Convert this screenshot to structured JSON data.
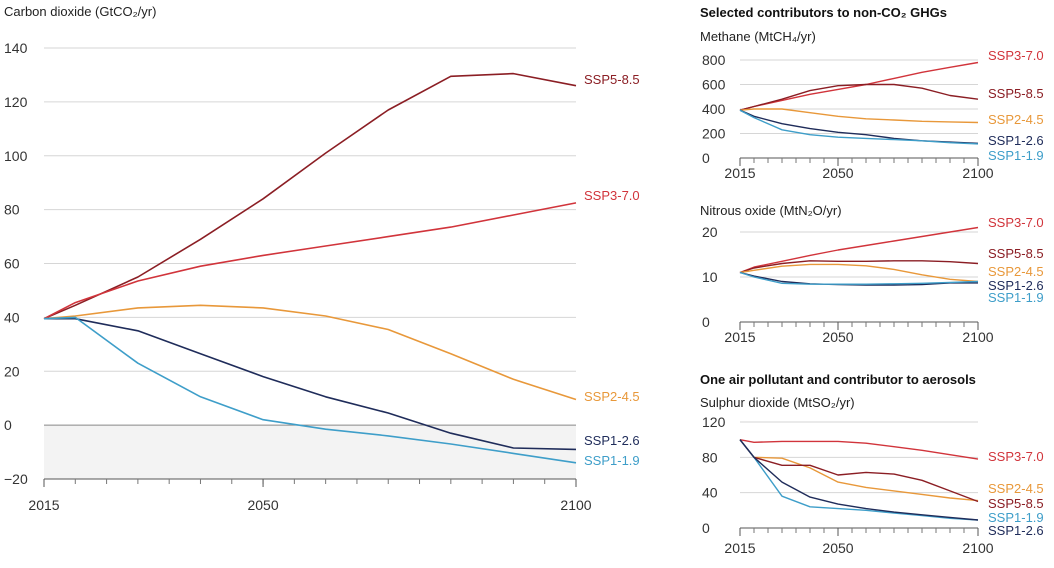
{
  "colors": {
    "SSP5-8.5": "#8b1e24",
    "SSP3-7.0": "#d1343b",
    "SSP2-4.5": "#e8983a",
    "SSP1-2.6": "#1f2c5a",
    "SSP1-1.9": "#3e9ec9"
  },
  "right_titles": {
    "ghg": "Selected contributors to non-CO₂ GHGs",
    "aerosol": "One air pollutant and contributor to aerosols"
  },
  "chart_data": [
    {
      "id": "co2",
      "type": "line",
      "title": "Carbon dioxide (GtCO₂/yr)",
      "xlim": [
        2015,
        2100
      ],
      "ylim": [
        -20,
        140
      ],
      "yticks": [
        -20,
        0,
        20,
        40,
        60,
        80,
        100,
        120,
        140
      ],
      "xticks": [
        2015,
        2050,
        2100
      ],
      "ytick_labels": [
        "−20",
        "0",
        "20",
        "40",
        "60",
        "80",
        "100",
        "120",
        "140"
      ],
      "xtick_labels": [
        "2015",
        "2050",
        "2100"
      ],
      "grid": true,
      "x": [
        2015,
        2020,
        2030,
        2040,
        2050,
        2060,
        2070,
        2080,
        2090,
        2100
      ],
      "series": [
        {
          "name": "SSP5-8.5",
          "values": [
            39.5,
            44.5,
            55,
            69,
            84,
            101,
            117,
            129.5,
            130.5,
            126
          ]
        },
        {
          "name": "SSP3-7.0",
          "values": [
            39.5,
            45.5,
            53.5,
            59,
            63,
            66.5,
            70,
            73.5,
            78,
            82.5
          ]
        },
        {
          "name": "SSP2-4.5",
          "values": [
            39.5,
            40.5,
            43.5,
            44.5,
            43.5,
            40.5,
            35.5,
            26.5,
            17,
            9.5
          ]
        },
        {
          "name": "SSP1-2.6",
          "values": [
            39.5,
            39.5,
            35,
            26.5,
            18,
            10.5,
            4.5,
            -3,
            -8.5,
            -9
          ]
        },
        {
          "name": "SSP1-1.9",
          "values": [
            39.5,
            40,
            23,
            10.5,
            2,
            -1.5,
            -4,
            -7,
            -10.5,
            -14
          ]
        }
      ]
    },
    {
      "id": "methane",
      "type": "line",
      "title": "Methane (MtCH₄/yr)",
      "xlim": [
        2015,
        2100
      ],
      "ylim": [
        0,
        800
      ],
      "yticks": [
        0,
        200,
        400,
        600,
        800
      ],
      "xticks": [
        2015,
        2050,
        2100
      ],
      "ytick_labels": [
        "0",
        "200",
        "400",
        "600",
        "800"
      ],
      "xtick_labels": [
        "2015",
        "2050",
        "2100"
      ],
      "grid": true,
      "x": [
        2015,
        2020,
        2030,
        2040,
        2050,
        2060,
        2070,
        2080,
        2090,
        2100
      ],
      "series": [
        {
          "name": "SSP3-7.0",
          "values": [
            390,
            420,
            470,
            520,
            560,
            600,
            650,
            700,
            740,
            780
          ]
        },
        {
          "name": "SSP5-8.5",
          "values": [
            390,
            420,
            480,
            550,
            590,
            600,
            600,
            570,
            510,
            480
          ]
        },
        {
          "name": "SSP2-4.5",
          "values": [
            390,
            400,
            400,
            370,
            340,
            320,
            310,
            300,
            295,
            290
          ]
        },
        {
          "name": "SSP1-2.6",
          "values": [
            390,
            340,
            280,
            240,
            210,
            190,
            160,
            140,
            130,
            120
          ]
        },
        {
          "name": "SSP1-1.9",
          "values": [
            390,
            330,
            230,
            190,
            170,
            160,
            150,
            140,
            125,
            115
          ]
        }
      ]
    },
    {
      "id": "n2o",
      "type": "line",
      "title": "Nitrous oxide (MtN₂O/yr)",
      "xlim": [
        2015,
        2100
      ],
      "ylim": [
        0,
        20
      ],
      "yticks": [
        0,
        10,
        20
      ],
      "xticks": [
        2015,
        2050,
        2100
      ],
      "ytick_labels": [
        "0",
        "10",
        "20"
      ],
      "xtick_labels": [
        "2015",
        "2050",
        "2100"
      ],
      "grid": true,
      "x": [
        2015,
        2020,
        2030,
        2040,
        2050,
        2060,
        2070,
        2080,
        2090,
        2100
      ],
      "series": [
        {
          "name": "SSP3-7.0",
          "values": [
            11,
            12.2,
            13.5,
            14.8,
            16,
            17,
            18,
            19,
            20,
            21
          ]
        },
        {
          "name": "SSP5-8.5",
          "values": [
            11,
            12,
            13,
            13.6,
            13.5,
            13.5,
            13.6,
            13.6,
            13.4,
            13
          ]
        },
        {
          "name": "SSP2-4.5",
          "values": [
            11,
            11.5,
            12.4,
            12.8,
            12.8,
            12.5,
            11.7,
            10.5,
            9.5,
            9
          ]
        },
        {
          "name": "SSP1-2.6",
          "values": [
            11,
            10.2,
            9,
            8.5,
            8.3,
            8.2,
            8.2,
            8.3,
            8.7,
            8.7
          ]
        },
        {
          "name": "SSP1-1.9",
          "values": [
            11,
            10,
            8.6,
            8.4,
            8.4,
            8.4,
            8.5,
            8.6,
            8.8,
            9
          ]
        }
      ]
    },
    {
      "id": "so2",
      "type": "line",
      "title": "Sulphur dioxide (MtSO₂/yr)",
      "xlim": [
        2015,
        2100
      ],
      "ylim": [
        0,
        120
      ],
      "yticks": [
        0,
        40,
        80,
        120
      ],
      "xticks": [
        2015,
        2050,
        2100
      ],
      "ytick_labels": [
        "0",
        "40",
        "80",
        "120"
      ],
      "xtick_labels": [
        "2015",
        "2050",
        "2100"
      ],
      "grid": true,
      "x": [
        2015,
        2020,
        2030,
        2040,
        2050,
        2060,
        2070,
        2080,
        2090,
        2100
      ],
      "series": [
        {
          "name": "SSP3-7.0",
          "values": [
            100,
            97,
            98,
            98,
            98,
            96,
            92,
            88,
            83,
            78
          ]
        },
        {
          "name": "SSP2-4.5",
          "values": [
            100,
            80,
            79,
            68,
            52,
            46,
            42,
            38,
            34,
            31
          ]
        },
        {
          "name": "SSP5-8.5",
          "values": [
            100,
            80,
            71,
            71,
            60,
            63,
            61,
            54,
            42,
            30
          ]
        },
        {
          "name": "SSP1-1.9",
          "values": [
            100,
            80,
            36,
            24,
            22,
            20,
            17,
            14,
            11,
            9
          ]
        },
        {
          "name": "SSP1-2.6",
          "values": [
            100,
            80,
            52,
            35,
            27,
            22,
            18,
            15,
            12,
            9
          ]
        }
      ]
    }
  ]
}
